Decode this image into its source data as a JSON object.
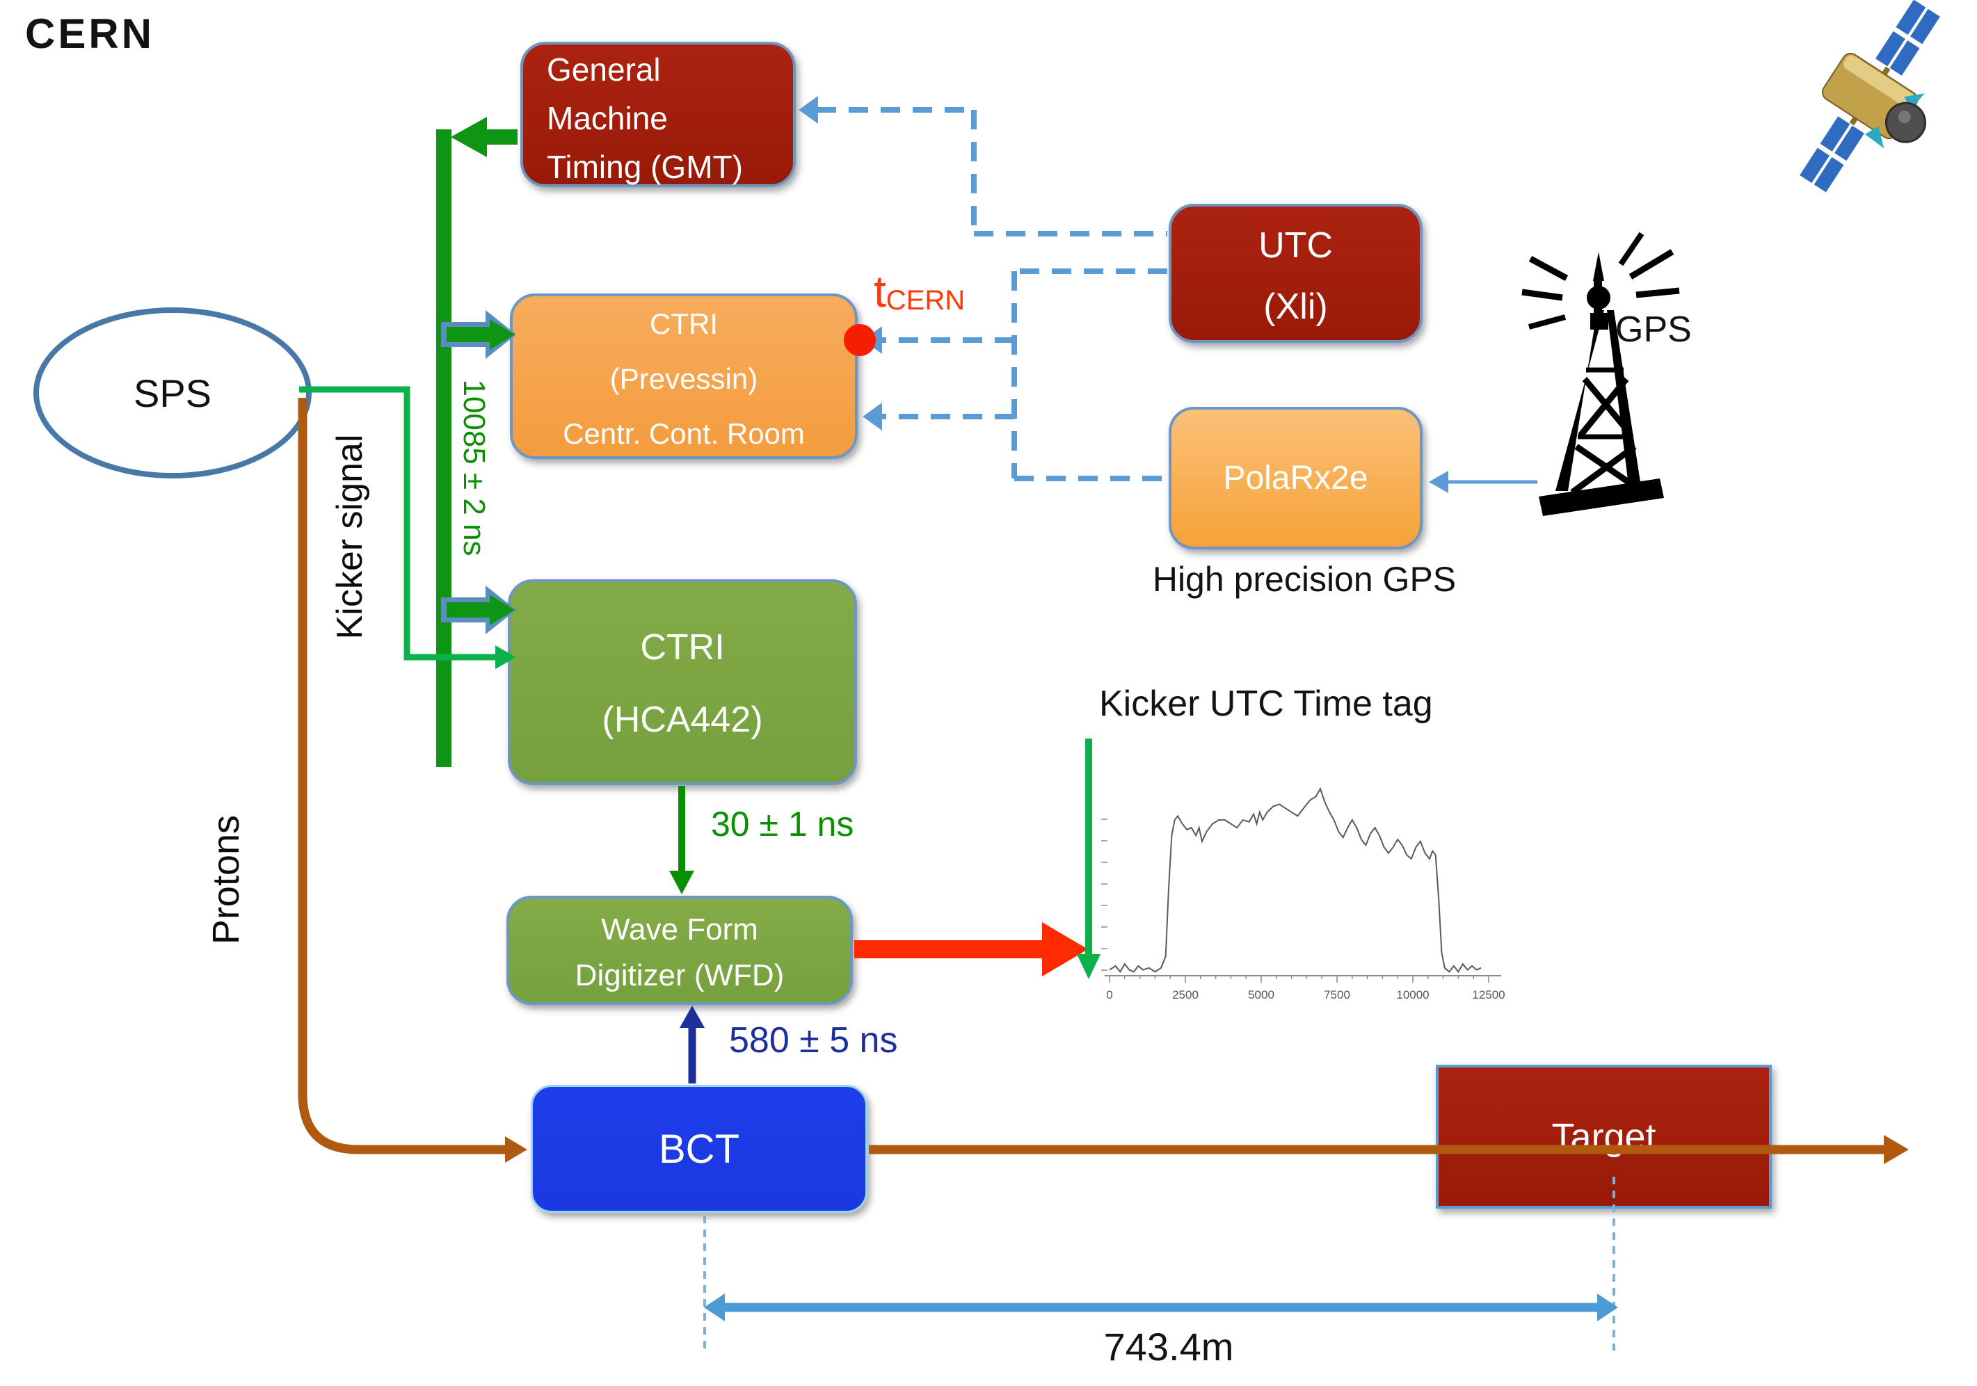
{
  "page": {
    "title": "CERN"
  },
  "nodes": {
    "sps": {
      "label": "SPS"
    },
    "gmt": {
      "lines": [
        "General",
        "Machine",
        "Timing (GMT)"
      ]
    },
    "ctri_prevessin": {
      "lines": [
        "CTRI",
        "(Prevessin)",
        "Centr. Cont. Room"
      ]
    },
    "utc": {
      "lines": [
        "UTC",
        "(Xli)"
      ]
    },
    "polarx2e": {
      "label": "PolaRx2e"
    },
    "ctri_hca442": {
      "lines": [
        "CTRI",
        "(HCA442)"
      ]
    },
    "wfd": {
      "lines": [
        "Wave Form",
        "Digitizer (WFD)"
      ]
    },
    "bct": {
      "label": "BCT"
    },
    "target": {
      "label": "Target"
    }
  },
  "labels": {
    "kicker_signal": "Kicker signal",
    "protons": "Protons",
    "gmt_delay": "10085 ± 2 ns",
    "wfd_delay": "30 ± 1 ns",
    "bct_delay": "580 ± 5 ns",
    "t_cern_main": "t",
    "t_cern_sub": "CERN",
    "gps": "GPS",
    "high_precision_gps": "High precision GPS",
    "kicker_utc_tag": "Kicker UTC Time tag",
    "distance": "743.4m"
  },
  "icons": {
    "satellite": "satellite-icon",
    "gps_tower": "gps-antenna-tower-icon"
  },
  "colors": {
    "dark_red": "#A21D0B",
    "orange": "#F5A14E",
    "olive_green": "#7CA442",
    "bright_blue": "#1C3BE9",
    "dark_green": "#0E9514",
    "kicker_green": "#0CB14B",
    "steel_blue": "#5B9BD5",
    "red_arrow": "#FF2A00",
    "red_dot": "#F61E00",
    "navy": "#1D2F9B",
    "proton_brown": "#B05A0F",
    "measure_blue": "#4D9BD6",
    "t_cern_red": "#FF3A08"
  },
  "chart_data": {
    "type": "line",
    "title": "Kicker UTC Time tag waveform",
    "xlabel": "",
    "ylabel": "",
    "x_ticks": [
      0,
      2500,
      5000,
      7500,
      10000,
      12500
    ],
    "xlim": [
      0,
      12800
    ],
    "ylim": [
      0,
      1
    ],
    "grid": false,
    "points": [
      [
        0,
        0.03
      ],
      [
        200,
        0.05
      ],
      [
        350,
        0.02
      ],
      [
        500,
        0.06
      ],
      [
        650,
        0.03
      ],
      [
        800,
        0.02
      ],
      [
        950,
        0.05
      ],
      [
        1100,
        0.03
      ],
      [
        1300,
        0.04
      ],
      [
        1500,
        0.02
      ],
      [
        1700,
        0.04
      ],
      [
        1850,
        0.1
      ],
      [
        1950,
        0.45
      ],
      [
        2050,
        0.72
      ],
      [
        2150,
        0.8
      ],
      [
        2250,
        0.82
      ],
      [
        2400,
        0.78
      ],
      [
        2550,
        0.75
      ],
      [
        2700,
        0.76
      ],
      [
        2850,
        0.72
      ],
      [
        2950,
        0.76
      ],
      [
        3050,
        0.69
      ],
      [
        3200,
        0.74
      ],
      [
        3400,
        0.78
      ],
      [
        3600,
        0.8
      ],
      [
        3800,
        0.8
      ],
      [
        4000,
        0.78
      ],
      [
        4200,
        0.76
      ],
      [
        4400,
        0.8
      ],
      [
        4600,
        0.79
      ],
      [
        4750,
        0.83
      ],
      [
        4850,
        0.78
      ],
      [
        4950,
        0.84
      ],
      [
        5050,
        0.8
      ],
      [
        5200,
        0.84
      ],
      [
        5400,
        0.87
      ],
      [
        5600,
        0.88
      ],
      [
        5800,
        0.86
      ],
      [
        6000,
        0.84
      ],
      [
        6200,
        0.82
      ],
      [
        6400,
        0.86
      ],
      [
        6600,
        0.9
      ],
      [
        6800,
        0.92
      ],
      [
        6950,
        0.96
      ],
      [
        7100,
        0.89
      ],
      [
        7250,
        0.84
      ],
      [
        7400,
        0.8
      ],
      [
        7550,
        0.74
      ],
      [
        7700,
        0.71
      ],
      [
        7850,
        0.76
      ],
      [
        8000,
        0.8
      ],
      [
        8150,
        0.76
      ],
      [
        8300,
        0.7
      ],
      [
        8450,
        0.67
      ],
      [
        8600,
        0.73
      ],
      [
        8750,
        0.76
      ],
      [
        8900,
        0.72
      ],
      [
        9050,
        0.66
      ],
      [
        9200,
        0.63
      ],
      [
        9350,
        0.66
      ],
      [
        9500,
        0.7
      ],
      [
        9650,
        0.67
      ],
      [
        9800,
        0.62
      ],
      [
        9950,
        0.6
      ],
      [
        10100,
        0.66
      ],
      [
        10250,
        0.69
      ],
      [
        10400,
        0.63
      ],
      [
        10550,
        0.6
      ],
      [
        10650,
        0.64
      ],
      [
        10750,
        0.62
      ],
      [
        10850,
        0.4
      ],
      [
        10950,
        0.12
      ],
      [
        11050,
        0.04
      ],
      [
        11200,
        0.02
      ],
      [
        11350,
        0.05
      ],
      [
        11500,
        0.02
      ],
      [
        11650,
        0.06
      ],
      [
        11800,
        0.03
      ],
      [
        11950,
        0.05
      ],
      [
        12100,
        0.03
      ],
      [
        12250,
        0.04
      ]
    ]
  }
}
